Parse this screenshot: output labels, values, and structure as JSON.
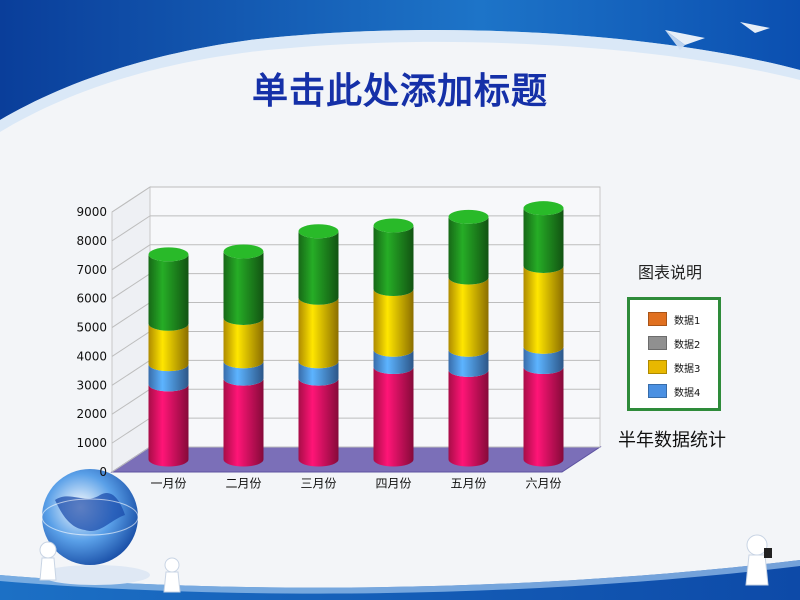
{
  "slide": {
    "title": "单击此处添加标题",
    "legend_title": "图表说明",
    "stats_label": "半年数据统计"
  },
  "colors": {
    "series1": "#e0115f",
    "series2": "#4a90e2",
    "series3": "#e8b800",
    "series4": "#1e8a1e",
    "legend_border": "#2e8b3a",
    "title": "#1530a8"
  },
  "legend": [
    {
      "label": "数据1",
      "color": "#e07020"
    },
    {
      "label": "数据2",
      "color": "#909090"
    },
    {
      "label": "数据3",
      "color": "#e8b800"
    },
    {
      "label": "数据4",
      "color": "#4a90e2"
    }
  ],
  "chart_data": {
    "type": "bar",
    "stacked": true,
    "categories": [
      "一月份",
      "二月份",
      "三月份",
      "四月份",
      "五月份",
      "六月份"
    ],
    "series": [
      {
        "color": "#e0115f",
        "values": [
          2600,
          2800,
          2800,
          3200,
          3100,
          3200
        ]
      },
      {
        "color": "#4a90e2",
        "values": [
          700,
          600,
          600,
          600,
          700,
          700
        ]
      },
      {
        "color": "#e8b800",
        "values": [
          1400,
          1500,
          2200,
          2100,
          2500,
          2800
        ]
      },
      {
        "color": "#1e8a1e",
        "values": [
          2400,
          2300,
          2300,
          2200,
          2100,
          2000
        ]
      }
    ],
    "ylim": [
      0,
      9000
    ],
    "yticks": [
      0,
      1000,
      2000,
      3000,
      4000,
      5000,
      6000,
      7000,
      8000,
      9000
    ],
    "grid": true
  }
}
